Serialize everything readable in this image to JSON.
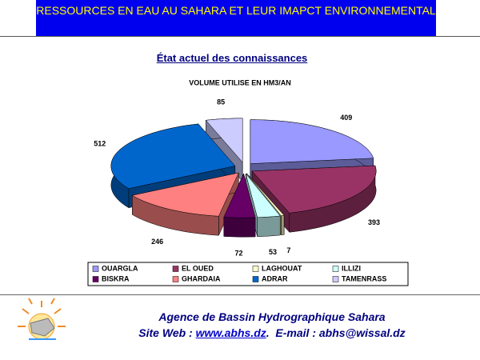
{
  "header": {
    "title": "RESSOURCES EN EAU AU SAHARA  ET LEUR IMAPCT ENVIRONNEMENTAL"
  },
  "subtitle": "État actuel des connaissances",
  "chart_data": {
    "type": "pie",
    "title": "VOLUME UTILISE EN HM3/AN",
    "categories": [
      "OUARGLA",
      "EL OUED",
      "LAGHOUAT",
      "ILLIZI",
      "BISKRA",
      "GHARDAIA",
      "ADRAR",
      "TAMENRASS"
    ],
    "values": [
      409,
      393,
      7,
      53,
      72,
      246,
      512,
      85
    ],
    "colors": [
      "#9999ff",
      "#993366",
      "#ffffcc",
      "#ccffff",
      "#660066",
      "#ff8080",
      "#0066cc",
      "#ccccff"
    ]
  },
  "footer": {
    "agency": "Agence de Bassin Hydrographique Sahara",
    "web_label": "Site Web : ",
    "web_link": "www.abhs.dz",
    "email": ".  E-mail : abhs@wissal.dz"
  }
}
